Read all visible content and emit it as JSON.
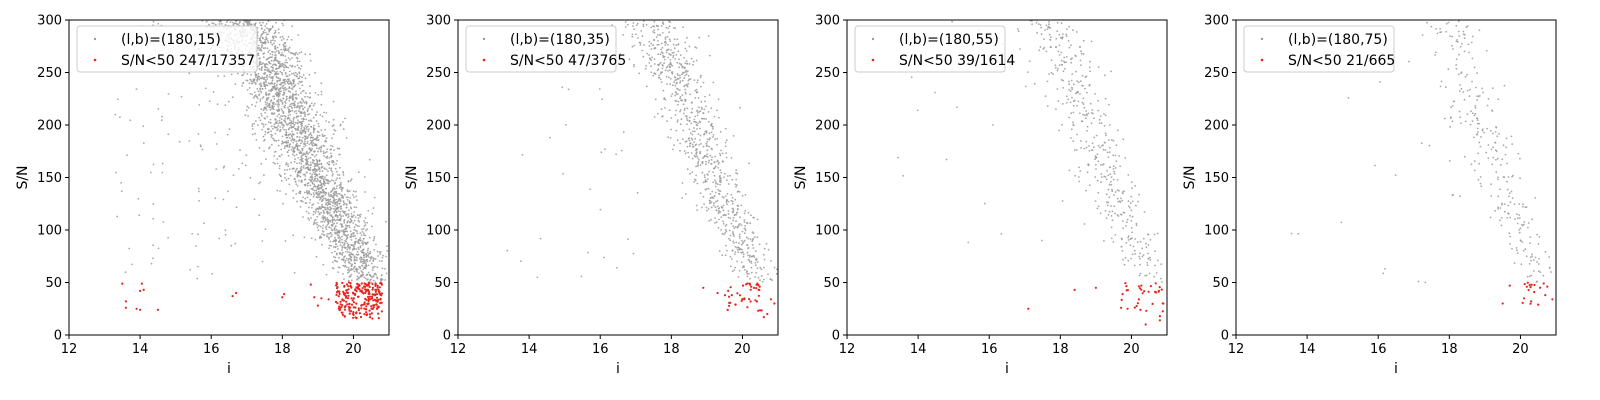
{
  "colors": {
    "all": "#999999",
    "low": "#e8231c",
    "frame": "#000000",
    "legend_edge": "#cccccc"
  },
  "chart_data": [
    {
      "type": "scatter",
      "xlabel": "i",
      "ylabel": "S/N",
      "xlim": [
        12,
        21
      ],
      "ylim": [
        0,
        300
      ],
      "xticks": [
        12,
        14,
        16,
        18,
        20
      ],
      "yticks": [
        0,
        50,
        100,
        150,
        200,
        250,
        300
      ],
      "grid": false,
      "legend_loc": "top-left",
      "series": [
        {
          "name": "(l,b)=(180,15)",
          "role": "all",
          "count": 17357,
          "trend": [
            [
              16.9,
              300
            ],
            [
              17.5,
              265
            ],
            [
              18.0,
              225
            ],
            [
              18.5,
              185
            ],
            [
              19.0,
              150
            ],
            [
              19.5,
              115
            ],
            [
              20.0,
              80
            ],
            [
              20.3,
              55
            ],
            [
              20.6,
              48
            ]
          ],
          "spread": 0.55,
          "density": 1.0,
          "bright_scatter": true
        },
        {
          "name": "S/N<50 247/17357",
          "role": "low",
          "points": [
            [
              13.5,
              49
            ],
            [
              13.6,
              32
            ],
            [
              13.6,
              26
            ],
            [
              13.9,
              25
            ],
            [
              14.0,
              24
            ],
            [
              14.0,
              42
            ],
            [
              14.05,
              49
            ],
            [
              14.1,
              43
            ],
            [
              14.5,
              24
            ],
            [
              16.6,
              37
            ],
            [
              16.7,
              40
            ],
            [
              18.0,
              36
            ],
            [
              18.05,
              39
            ],
            [
              18.8,
              48
            ],
            [
              18.9,
              36
            ],
            [
              19.0,
              28
            ],
            [
              19.1,
              35
            ],
            [
              19.3,
              34
            ]
          ],
          "cluster": {
            "x": [
              19.5,
              20.8
            ],
            "y": [
              15,
              50
            ],
            "n": 229
          }
        }
      ]
    },
    {
      "type": "scatter",
      "xlabel": "i",
      "ylabel": "S/N",
      "xlim": [
        12,
        21
      ],
      "ylim": [
        0,
        300
      ],
      "xticks": [
        12,
        14,
        16,
        18,
        20
      ],
      "yticks": [
        0,
        50,
        100,
        150,
        200,
        250,
        300
      ],
      "grid": false,
      "legend_loc": "top-left",
      "series": [
        {
          "name": "(l,b)=(180,35)",
          "role": "all",
          "count": 3765,
          "trend": [
            [
              17.4,
              300
            ],
            [
              17.9,
              265
            ],
            [
              18.4,
              225
            ],
            [
              18.8,
              185
            ],
            [
              19.2,
              150
            ],
            [
              19.6,
              115
            ],
            [
              20.0,
              82
            ],
            [
              20.3,
              58
            ],
            [
              20.5,
              50
            ]
          ],
          "spread": 0.45,
          "density": 0.32,
          "bright_scatter": true
        },
        {
          "name": "S/N<50 47/3765",
          "role": "low",
          "points": [
            [
              18.9,
              45
            ],
            [
              19.3,
              40
            ],
            [
              19.6,
              42
            ],
            [
              19.7,
              38
            ],
            [
              20.6,
              17
            ],
            [
              20.7,
              20
            ],
            [
              20.8,
              34
            ],
            [
              20.9,
              30
            ]
          ],
          "cluster": {
            "x": [
              19.5,
              20.8
            ],
            "y": [
              20,
              50
            ],
            "n": 39
          }
        }
      ]
    },
    {
      "type": "scatter",
      "xlabel": "i",
      "ylabel": "S/N",
      "xlim": [
        12,
        21
      ],
      "ylim": [
        0,
        300
      ],
      "xticks": [
        12,
        14,
        16,
        18,
        20
      ],
      "yticks": [
        0,
        50,
        100,
        150,
        200,
        250,
        300
      ],
      "grid": false,
      "legend_loc": "top-left",
      "series": [
        {
          "name": "(l,b)=(180,55)",
          "role": "all",
          "count": 1614,
          "trend": [
            [
              17.6,
              300
            ],
            [
              18.0,
              265
            ],
            [
              18.5,
              225
            ],
            [
              18.9,
              185
            ],
            [
              19.3,
              150
            ],
            [
              19.7,
              115
            ],
            [
              20.1,
              85
            ],
            [
              20.4,
              60
            ],
            [
              20.6,
              50
            ]
          ],
          "spread": 0.45,
          "density": 0.16,
          "bright_scatter": true
        },
        {
          "name": "S/N<50 39/1614",
          "role": "low",
          "points": [
            [
              17.1,
              25
            ],
            [
              18.4,
              43
            ],
            [
              19.0,
              45
            ],
            [
              20.4,
              10
            ],
            [
              20.8,
              14
            ],
            [
              20.8,
              18
            ],
            [
              20.9,
              30
            ]
          ],
          "cluster": {
            "x": [
              19.7,
              20.9
            ],
            "y": [
              20,
              50
            ],
            "n": 32
          }
        }
      ]
    },
    {
      "type": "scatter",
      "xlabel": "i",
      "ylabel": "S/N",
      "xlim": [
        12,
        21
      ],
      "ylim": [
        0,
        300
      ],
      "xticks": [
        12,
        14,
        16,
        18,
        20
      ],
      "yticks": [
        0,
        50,
        100,
        150,
        200,
        250,
        300
      ],
      "grid": false,
      "legend_loc": "top-left",
      "series": [
        {
          "name": "(l,b)=(180,75)",
          "role": "all",
          "count": 665,
          "trend": [
            [
              18.0,
              300
            ],
            [
              18.4,
              250
            ],
            [
              18.9,
              200
            ],
            [
              19.3,
              160
            ],
            [
              19.7,
              120
            ],
            [
              20.1,
              85
            ],
            [
              20.4,
              65
            ],
            [
              20.7,
              50
            ]
          ],
          "spread": 0.4,
          "density": 0.1,
          "bright_scatter": true
        },
        {
          "name": "S/N<50 21/665",
          "role": "low",
          "points": [
            [
              19.5,
              30
            ],
            [
              19.7,
              47
            ],
            [
              20.1,
              35
            ],
            [
              20.3,
              32
            ],
            [
              20.5,
              29
            ],
            [
              20.7,
              38
            ],
            [
              20.9,
              34
            ]
          ],
          "cluster": {
            "x": [
              19.9,
              20.8
            ],
            "y": [
              28,
              50
            ],
            "n": 14
          }
        }
      ]
    }
  ]
}
